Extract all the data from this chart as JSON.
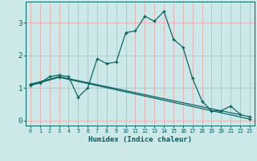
{
  "xlabel": "Humidex (Indice chaleur)",
  "bg_color": "#cce8e8",
  "grid_color": "#e8a0a0",
  "line_color": "#006060",
  "xlim": [
    -0.5,
    23.5
  ],
  "ylim": [
    -0.15,
    3.65
  ],
  "xticks": [
    0,
    1,
    2,
    3,
    4,
    5,
    6,
    7,
    8,
    9,
    10,
    11,
    12,
    13,
    14,
    15,
    16,
    17,
    18,
    19,
    20,
    21,
    22,
    23
  ],
  "yticks": [
    0,
    1,
    2,
    3
  ],
  "series1_x": [
    0,
    1,
    2,
    3,
    4,
    5,
    6,
    7,
    8,
    9,
    10,
    11,
    12,
    13,
    14,
    15,
    16,
    17,
    18,
    19,
    20,
    21,
    22
  ],
  "series1_y": [
    1.1,
    1.15,
    1.35,
    1.4,
    1.35,
    0.72,
    1.0,
    1.9,
    1.75,
    1.8,
    2.7,
    2.75,
    3.2,
    3.05,
    3.35,
    2.5,
    2.25,
    1.3,
    0.6,
    0.3,
    0.3,
    0.45,
    0.2
  ],
  "series2_x": [
    0,
    3,
    23
  ],
  "series2_y": [
    1.12,
    1.35,
    0.12
  ],
  "series3_x": [
    0,
    3,
    23
  ],
  "series3_y": [
    1.08,
    1.33,
    0.05
  ]
}
